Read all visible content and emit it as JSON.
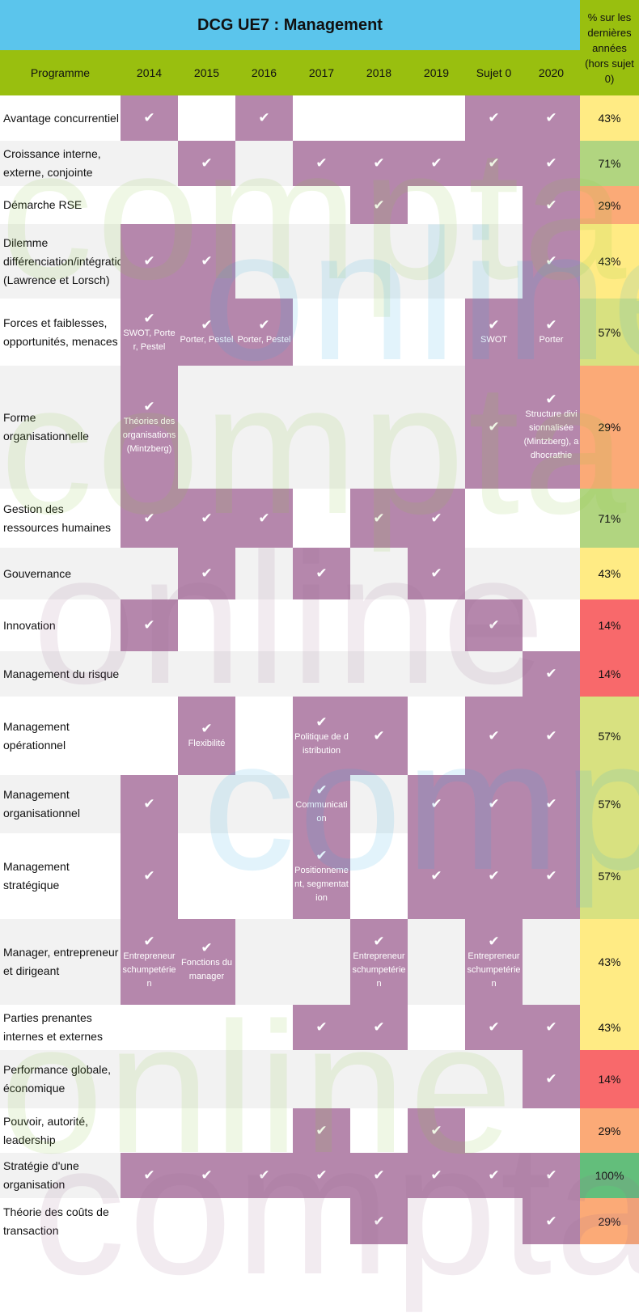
{
  "title": "DCG UE7 : Management",
  "pct_header": "% sur les dernières années (hors sujet 0)",
  "columns": {
    "programme": "Programme",
    "years": [
      "2014",
      "2015",
      "2016",
      "2017",
      "2018",
      "2019",
      "Sujet 0",
      "2020"
    ]
  },
  "check_symbol": "✔",
  "watermark": "compta online",
  "colors": {
    "title": "#5BC5EC",
    "header": "#99BF0F",
    "checked": "#B587AC",
    "pct_100": "#63BE7B",
    "pct_71": "#B1D580",
    "pct_57": "#D8E180",
    "pct_43": "#FFEB84",
    "pct_29": "#FBAA77",
    "pct_14": "#F8696B"
  },
  "rows": [
    {
      "label": "Avantage concurrentiel",
      "cells": [
        {
          "c": true
        },
        {},
        {
          "c": true
        },
        {},
        {},
        {},
        {
          "c": true
        },
        {
          "c": true
        }
      ],
      "pct": "43%"
    },
    {
      "label": "Croissance interne, externe, conjointe",
      "cells": [
        {},
        {
          "c": true
        },
        {},
        {
          "c": true
        },
        {
          "c": true
        },
        {
          "c": true
        },
        {
          "c": true
        },
        {
          "c": true
        }
      ],
      "pct": "71%"
    },
    {
      "label": "Démarche RSE",
      "cells": [
        {},
        {},
        {},
        {},
        {
          "c": true
        },
        {},
        {},
        {
          "c": true
        }
      ],
      "pct": "29%"
    },
    {
      "label": "Dilemme différenciation/intégration (Lawrence et Lorsch)",
      "cells": [
        {
          "c": true
        },
        {
          "c": true
        },
        {},
        {},
        {},
        {},
        {},
        {
          "c": true
        }
      ],
      "pct": "43%"
    },
    {
      "label": "Forces et faiblesses, opportunités, menaces",
      "cells": [
        {
          "c": true,
          "note": "SWOT, Porter, Pestel"
        },
        {
          "c": true,
          "note": "Porter, Pestel"
        },
        {
          "c": true,
          "note": "Porter, Pestel"
        },
        {},
        {},
        {},
        {
          "c": true,
          "note": "SWOT"
        },
        {
          "c": true,
          "note": "Porter"
        }
      ],
      "pct": "57%"
    },
    {
      "label": "Forme organisationnelle",
      "cells": [
        {
          "c": true,
          "note": "Théories des organisations (Mintzberg)"
        },
        {},
        {},
        {},
        {},
        {},
        {
          "c": true
        },
        {
          "c": true,
          "note": "Structure divisionnalisée (Mintzberg), adhocrathie"
        }
      ],
      "pct": "29%"
    },
    {
      "label": "Gestion des ressources humaines",
      "cells": [
        {
          "c": true
        },
        {
          "c": true
        },
        {
          "c": true
        },
        {},
        {
          "c": true
        },
        {
          "c": true
        },
        {},
        {}
      ],
      "pct": "71%"
    },
    {
      "label": "Gouvernance",
      "cells": [
        {},
        {
          "c": true
        },
        {},
        {
          "c": true
        },
        {},
        {
          "c": true
        },
        {},
        {}
      ],
      "pct": "43%"
    },
    {
      "label": "Innovation",
      "cells": [
        {
          "c": true
        },
        {},
        {},
        {},
        {},
        {},
        {
          "c": true
        },
        {}
      ],
      "pct": "14%"
    },
    {
      "label": "Management du risque",
      "cells": [
        {},
        {},
        {},
        {},
        {},
        {},
        {},
        {
          "c": true
        }
      ],
      "pct": "14%"
    },
    {
      "label": "Management opérationnel",
      "cells": [
        {},
        {
          "c": true,
          "note": "Flexibilité"
        },
        {},
        {
          "c": true,
          "note": "Politique de distribution"
        },
        {
          "c": true
        },
        {},
        {
          "c": true
        },
        {
          "c": true
        }
      ],
      "pct": "57%"
    },
    {
      "label": "Management organisationnel",
      "cells": [
        {
          "c": true
        },
        {},
        {},
        {
          "c": true,
          "note": "Communication"
        },
        {},
        {
          "c": true
        },
        {
          "c": true
        },
        {
          "c": true
        }
      ],
      "pct": "57%"
    },
    {
      "label": "Management stratégique",
      "cells": [
        {
          "c": true
        },
        {},
        {},
        {
          "c": true,
          "note": "Positionnement, segmentation"
        },
        {},
        {
          "c": true
        },
        {
          "c": true
        },
        {
          "c": true
        }
      ],
      "pct": "57%"
    },
    {
      "label": "Manager, entrepreneur et dirigeant",
      "cells": [
        {
          "c": true,
          "note": "Entrepreneur schumpetérien"
        },
        {
          "c": true,
          "note": "Fonctions du manager"
        },
        {},
        {},
        {
          "c": true,
          "note": "Entrepreneur schumpetérien"
        },
        {},
        {
          "c": true,
          "note": "Entrepreneur schumpetérien"
        },
        {}
      ],
      "pct": "43%"
    },
    {
      "label": "Parties prenantes internes et externes",
      "cells": [
        {},
        {},
        {},
        {
          "c": true
        },
        {
          "c": true
        },
        {},
        {
          "c": true
        },
        {
          "c": true
        }
      ],
      "pct": "43%"
    },
    {
      "label": "Performance globale, économique",
      "cells": [
        {},
        {},
        {},
        {},
        {},
        {},
        {},
        {
          "c": true
        }
      ],
      "pct": "14%"
    },
    {
      "label": "Pouvoir, autorité, leadership",
      "cells": [
        {},
        {},
        {},
        {
          "c": true
        },
        {},
        {
          "c": true
        },
        {},
        {}
      ],
      "pct": "29%"
    },
    {
      "label": "Stratégie d'une organisation",
      "cells": [
        {
          "c": true
        },
        {
          "c": true
        },
        {
          "c": true
        },
        {
          "c": true
        },
        {
          "c": true
        },
        {
          "c": true
        },
        {
          "c": true
        },
        {
          "c": true
        }
      ],
      "pct": "100%"
    },
    {
      "label": "Théorie des coûts de transaction",
      "cells": [
        {},
        {},
        {},
        {},
        {
          "c": true
        },
        {},
        {},
        {
          "c": true
        }
      ],
      "pct": "29%"
    }
  ]
}
